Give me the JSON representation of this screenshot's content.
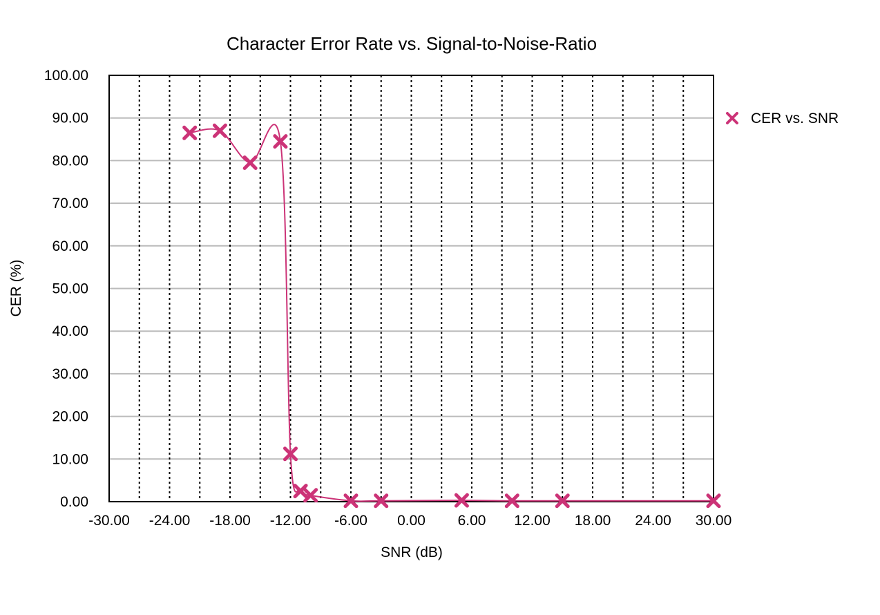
{
  "chart_data": {
    "type": "line",
    "title": "Character Error Rate vs. Signal-to-Noise-Ratio",
    "xlabel": "SNR (dB)",
    "ylabel": "CER (%)",
    "xlim": [
      -30,
      30
    ],
    "ylim": [
      0,
      100
    ],
    "x_ticks": [
      "-30.00",
      "-24.00",
      "-18.00",
      "-12.00",
      "-6.00",
      "0.00",
      "6.00",
      "12.00",
      "18.00",
      "24.00",
      "30.00"
    ],
    "y_ticks": [
      "0.00",
      "10.00",
      "20.00",
      "30.00",
      "40.00",
      "50.00",
      "60.00",
      "70.00",
      "80.00",
      "90.00",
      "100.00"
    ],
    "grid": {
      "horizontal": "solid",
      "vertical": "dotted"
    },
    "legend": "right",
    "series": [
      {
        "name": "CER vs. SNR",
        "color": "#cc3377",
        "marker": "x",
        "x": [
          -22,
          -19,
          -16,
          -13,
          -12,
          -11,
          -10,
          -6,
          -3,
          5,
          10,
          15,
          30
        ],
        "y": [
          86.5,
          87,
          79.5,
          84.5,
          11.2,
          2.5,
          1.5,
          0.2,
          0.2,
          0.3,
          0.2,
          0.2,
          0.2
        ]
      }
    ]
  }
}
